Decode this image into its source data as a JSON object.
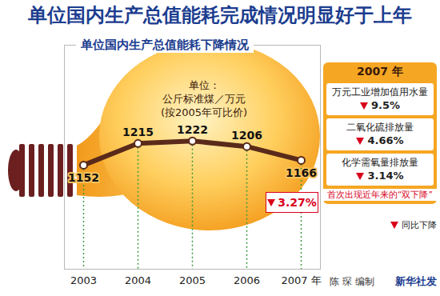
{
  "chart_data": {
    "type": "line",
    "title": "单位国内生产总值能耗完成情况明显好于上年",
    "subtitle": "单位国内生产总值能耗下降情况",
    "unit_lines": [
      "单位：",
      "公斤标准煤／万元",
      "(按2005年可比价)"
    ],
    "categories": [
      "2003",
      "2004",
      "2005",
      "2006",
      "2007 年"
    ],
    "values": [
      1152,
      1215,
      1222,
      1206,
      1166
    ],
    "color": "#5a2a1a",
    "marker": "circle",
    "ylim": [
      850,
      1500
    ],
    "tick_labels": "x",
    "grid": false,
    "data_labels": true,
    "annotation": {
      "value": 3.27,
      "unit": "%"
    },
    "side_panel": {
      "title": "2007 年",
      "items": [
        {
          "label": "万元工业增加值用水量",
          "value": 9.5,
          "unit": "%"
        },
        {
          "label": "二氧化硫排放量",
          "value": 4.66,
          "unit": "%"
        },
        {
          "label": "化学需氧量排放量",
          "value": 3.14,
          "unit": "%"
        }
      ],
      "note": "首次出现近年来的“双下降”",
      "symbol_note": "同比下降"
    },
    "credits": [
      "陈 琛 编制",
      "新华社发"
    ]
  }
}
